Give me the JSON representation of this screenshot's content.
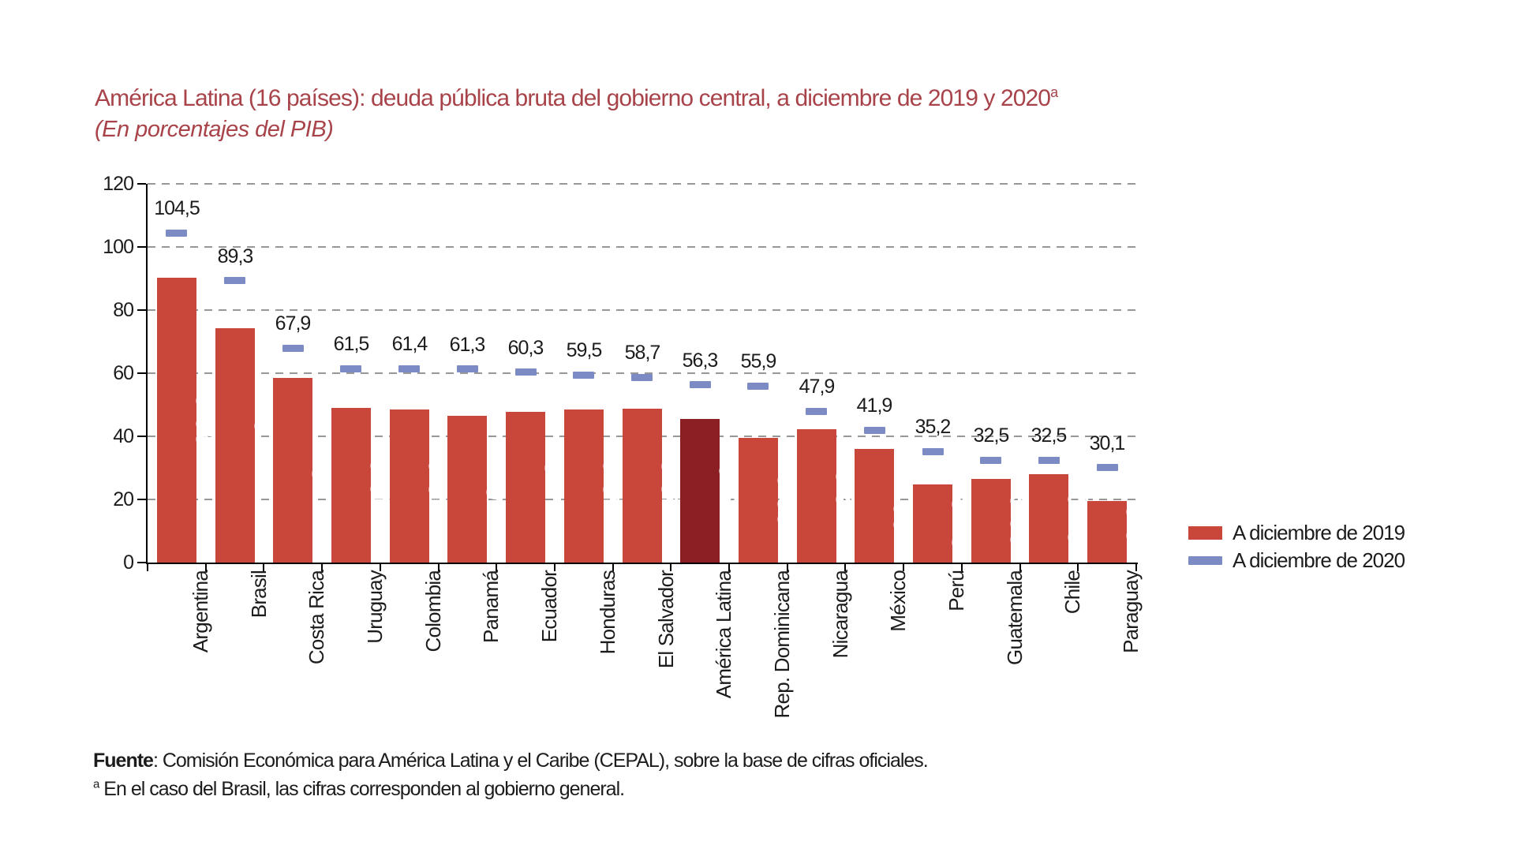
{
  "header": {
    "title": "América Latina (16 países): deuda pública bruta del gobierno central, a diciembre de 2019 y 2020",
    "title_superscript": "a",
    "subtitle": "(En porcentajes del PIB)",
    "title_color": "#a8434a"
  },
  "chart_data": {
    "type": "bar",
    "title": "América Latina (16 países): deuda pública bruta del gobierno central, a diciembre de 2019 y 2020",
    "subtitle": "(En porcentajes del PIB)",
    "categories": [
      "Argentina",
      "Brasil",
      "Costa Rica",
      "Uruguay",
      "Colombia",
      "Panamá",
      "Ecuador",
      "Honduras",
      "El Salvador",
      "América Latina",
      "Rep. Dominicana",
      "Nicaragua",
      "México",
      "Perú",
      "Guatemala",
      "Chile",
      "Paraguay"
    ],
    "series": [
      {
        "name": "A diciembre de 2019",
        "style": "bar",
        "color": "#c8473a",
        "values": [
          90.2,
          74.3,
          58.5,
          49.0,
          48.6,
          46.4,
          47.8,
          48.6,
          48.8,
          45.6,
          39.6,
          42.3,
          36.1,
          24.8,
          26.6,
          27.9,
          19.6
        ]
      },
      {
        "name": "A diciembre de 2020",
        "style": "dash",
        "color": "#7c8bc4",
        "values": [
          104.5,
          89.3,
          67.9,
          61.5,
          61.4,
          61.3,
          60.3,
          59.5,
          58.7,
          56.3,
          55.9,
          47.9,
          41.9,
          35.2,
          32.5,
          32.5,
          30.1
        ]
      }
    ],
    "highlight_index": 9,
    "highlight_color": "#8b1f23",
    "decimal_separator": ",",
    "ylim": [
      0,
      120
    ],
    "ytick_step": 20,
    "grid": "horizontal-dashed",
    "legend_position": "right-bottom",
    "xlabel": "",
    "ylabel": ""
  },
  "legend": {
    "items": [
      {
        "label": "A diciembre de 2019",
        "swatch": "bar"
      },
      {
        "label": "A diciembre de 2020",
        "swatch": "dash"
      }
    ]
  },
  "footer": {
    "source_bold": "Fuente",
    "source_text": ": Comisión Económica para América Latina y el Caribe (CEPAL), sobre la base de cifras oficiales.",
    "note_superscript": "a",
    "note_text": " En el caso del Brasil, las cifras corresponden al gobierno general."
  }
}
